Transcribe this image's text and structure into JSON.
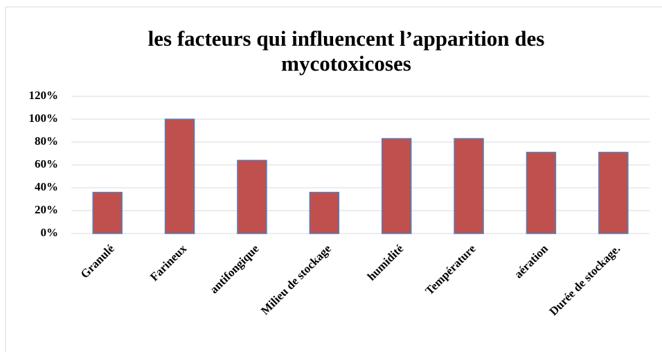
{
  "chart_data": {
    "type": "bar",
    "title": "les facteurs qui influencent l’apparition des mycotoxicoses",
    "categories": [
      "Granulé",
      "Farineux",
      "antifongique",
      "Milieu de stockage",
      "humidité",
      "Température",
      "aération",
      "Durée de stockage."
    ],
    "values": [
      36,
      100,
      64,
      36,
      83,
      83,
      71,
      71
    ],
    "color": "#c0504d",
    "ylim": [
      0,
      120
    ],
    "yticks": [
      {
        "value": 0,
        "label": "0%"
      },
      {
        "value": 20,
        "label": "20%"
      },
      {
        "value": 40,
        "label": "40%"
      },
      {
        "value": 60,
        "label": "60%"
      },
      {
        "value": 80,
        "label": "80%"
      },
      {
        "value": 100,
        "label": "100%"
      },
      {
        "value": 120,
        "label": "120%"
      }
    ],
    "grid": true
  }
}
